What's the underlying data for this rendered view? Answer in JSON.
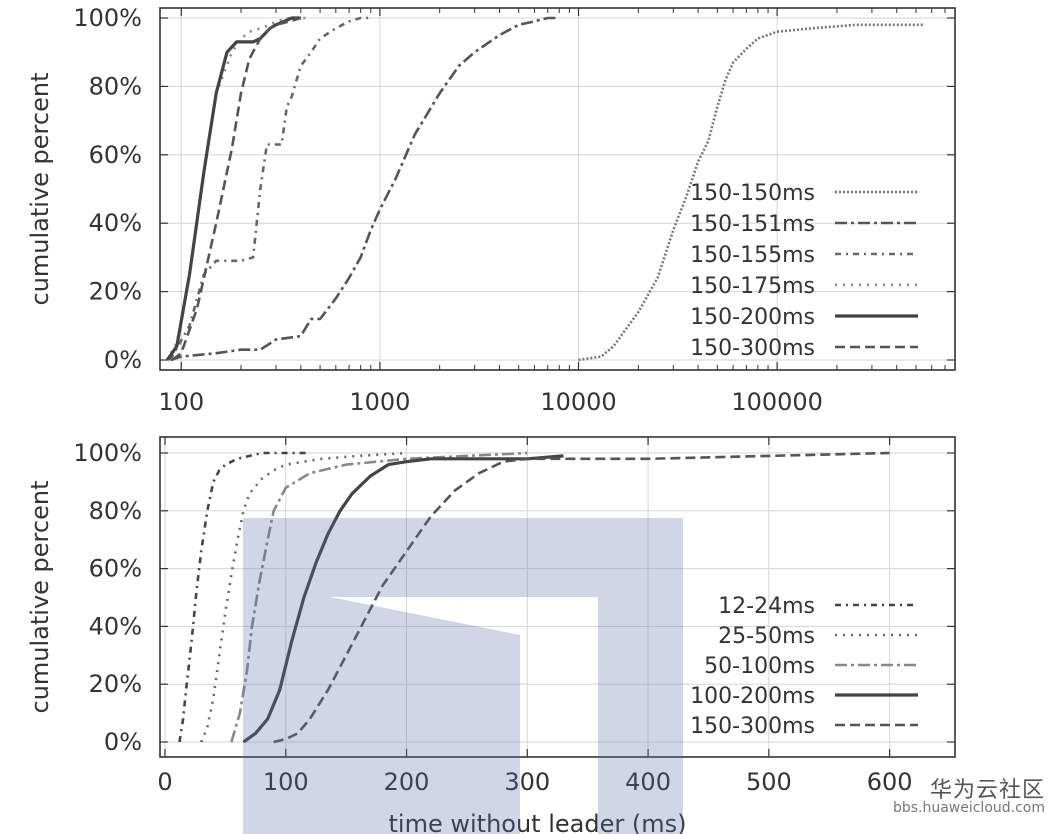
{
  "chart_data": [
    {
      "type": "line",
      "xscale": "log",
      "xlabel": "",
      "ylabel": "cumulative percent",
      "xlim": [
        80,
        700000
      ],
      "ylim": [
        0,
        100
      ],
      "grid": true,
      "legend_position": "bottom-right",
      "x_ticks": [
        {
          "value": 100,
          "label": "100"
        },
        {
          "value": 1000,
          "label": "1000"
        },
        {
          "value": 10000,
          "label": "10000"
        },
        {
          "value": 100000,
          "label": "100000"
        }
      ],
      "y_ticks": [
        {
          "value": 0,
          "label": "0%"
        },
        {
          "value": 20,
          "label": "20%"
        },
        {
          "value": 40,
          "label": "40%"
        },
        {
          "value": 60,
          "label": "60%"
        },
        {
          "value": 80,
          "label": "80%"
        },
        {
          "value": 100,
          "label": "100%"
        }
      ],
      "series": [
        {
          "name": "150-150ms",
          "dash": "dotted",
          "color": "#777777",
          "x": [
            10000,
            13000,
            15000,
            20000,
            25000,
            30000,
            35000,
            40000,
            45000,
            50000,
            55000,
            60000,
            70000,
            80000,
            100000,
            150000,
            250000,
            400000,
            550000
          ],
          "y": [
            0,
            1,
            4,
            14,
            24,
            38,
            48,
            58,
            64,
            74,
            82,
            87,
            91,
            94,
            96,
            97,
            98,
            98,
            98
          ]
        },
        {
          "name": "150-151ms",
          "dash": "dashdot",
          "color": "#555555",
          "x": [
            88,
            100,
            150,
            200,
            250,
            300,
            400,
            450,
            500,
            600,
            700,
            800,
            900,
            1000,
            1200,
            1500,
            2000,
            2500,
            3000,
            4000,
            5000,
            6000,
            7000,
            8000
          ],
          "y": [
            0,
            1,
            2,
            3,
            3,
            6,
            7,
            12,
            12,
            18,
            24,
            30,
            38,
            44,
            53,
            66,
            78,
            86,
            90,
            95,
            98,
            99,
            100,
            100
          ]
        },
        {
          "name": "150-155ms",
          "dash": "dashdotdot",
          "color": "#666666",
          "x": [
            88,
            110,
            130,
            150,
            170,
            200,
            230,
            250,
            270,
            300,
            320,
            340,
            360,
            400,
            450,
            500,
            600,
            700,
            800,
            900
          ],
          "y": [
            0,
            10,
            25,
            29,
            29,
            29,
            30,
            50,
            63,
            63,
            63,
            74,
            77,
            86,
            90,
            94,
            97,
            99,
            100,
            100
          ]
        },
        {
          "name": "150-175ms",
          "dash": "shortdot",
          "color": "#888888",
          "x": [
            85,
            95,
            110,
            130,
            150,
            180,
            200,
            220,
            250,
            280,
            300,
            350,
            400,
            450
          ],
          "y": [
            0,
            5,
            25,
            55,
            78,
            90,
            94,
            96,
            97,
            98,
            99,
            100,
            100,
            100
          ]
        },
        {
          "name": "150-200ms",
          "dash": "solid",
          "color": "#444444",
          "x": [
            85,
            95,
            110,
            130,
            150,
            170,
            190,
            200,
            230,
            250,
            280,
            300,
            330,
            360,
            400
          ],
          "y": [
            0,
            4,
            25,
            55,
            78,
            90,
            93,
            93,
            93,
            94,
            97,
            98,
            99,
            100,
            100
          ]
        },
        {
          "name": "150-300ms",
          "dash": "dashed",
          "color": "#555555",
          "x": [
            90,
            100,
            120,
            150,
            180,
            200,
            220,
            250,
            280,
            300,
            350,
            400
          ],
          "y": [
            0,
            2,
            15,
            40,
            62,
            78,
            88,
            94,
            97,
            98,
            99,
            100
          ]
        }
      ]
    },
    {
      "type": "line",
      "xscale": "linear",
      "xlabel": "time without leader (ms)",
      "ylabel": "cumulative percent",
      "xlim": [
        0,
        650
      ],
      "ylim": [
        0,
        100
      ],
      "grid": true,
      "legend_position": "bottom-right",
      "x_ticks": [
        {
          "value": 0,
          "label": "0"
        },
        {
          "value": 100,
          "label": "100"
        },
        {
          "value": 200,
          "label": "200"
        },
        {
          "value": 300,
          "label": "300"
        },
        {
          "value": 400,
          "label": "400"
        },
        {
          "value": 500,
          "label": "500"
        },
        {
          "value": 600,
          "label": "600"
        }
      ],
      "y_ticks": [
        {
          "value": 0,
          "label": "0%"
        },
        {
          "value": 20,
          "label": "20%"
        },
        {
          "value": 40,
          "label": "40%"
        },
        {
          "value": 60,
          "label": "60%"
        },
        {
          "value": 80,
          "label": "80%"
        },
        {
          "value": 100,
          "label": "100%"
        }
      ],
      "series": [
        {
          "name": "12-24ms",
          "dash": "dashdotdot",
          "color": "#444444",
          "x": [
            12,
            15,
            18,
            22,
            26,
            30,
            35,
            40,
            45,
            50,
            60,
            70,
            80,
            100,
            120
          ],
          "y": [
            0,
            8,
            20,
            35,
            52,
            66,
            80,
            90,
            94,
            96,
            98,
            99,
            100,
            100,
            100
          ]
        },
        {
          "name": "25-50ms",
          "dash": "shortdot",
          "color": "#666666",
          "x": [
            30,
            35,
            40,
            45,
            50,
            55,
            60,
            65,
            70,
            80,
            90,
            100,
            130,
            160,
            200
          ],
          "y": [
            0,
            5,
            15,
            30,
            45,
            58,
            70,
            80,
            86,
            91,
            94,
            96,
            98,
            99,
            100
          ]
        },
        {
          "name": "50-100ms",
          "dash": "dashdot",
          "color": "#888888",
          "x": [
            55,
            62,
            68,
            72,
            78,
            85,
            90,
            100,
            120,
            150,
            200,
            250,
            300
          ],
          "y": [
            0,
            10,
            25,
            40,
            55,
            70,
            80,
            88,
            93,
            96,
            98,
            99,
            100
          ]
        },
        {
          "name": "100-200ms",
          "dash": "solid",
          "color": "#444444",
          "x": [
            65,
            75,
            85,
            95,
            105,
            115,
            125,
            135,
            145,
            155,
            170,
            185,
            200,
            220,
            250,
            300,
            330
          ],
          "y": [
            0,
            3,
            8,
            18,
            35,
            50,
            62,
            72,
            80,
            86,
            92,
            96,
            97,
            98,
            98,
            98,
            99
          ]
        },
        {
          "name": "150-300ms",
          "dash": "dashed",
          "color": "#555555",
          "x": [
            90,
            100,
            110,
            120,
            135,
            150,
            165,
            180,
            200,
            220,
            240,
            260,
            280,
            300,
            350,
            400,
            500,
            600
          ],
          "y": [
            0,
            1,
            3,
            8,
            18,
            30,
            42,
            54,
            66,
            78,
            87,
            93,
            97,
            98,
            98,
            98,
            99,
            100
          ]
        }
      ]
    }
  ],
  "watermark": {
    "brand_text": "华为云社区",
    "sub_text": "bbs.huaweicloud.com"
  }
}
